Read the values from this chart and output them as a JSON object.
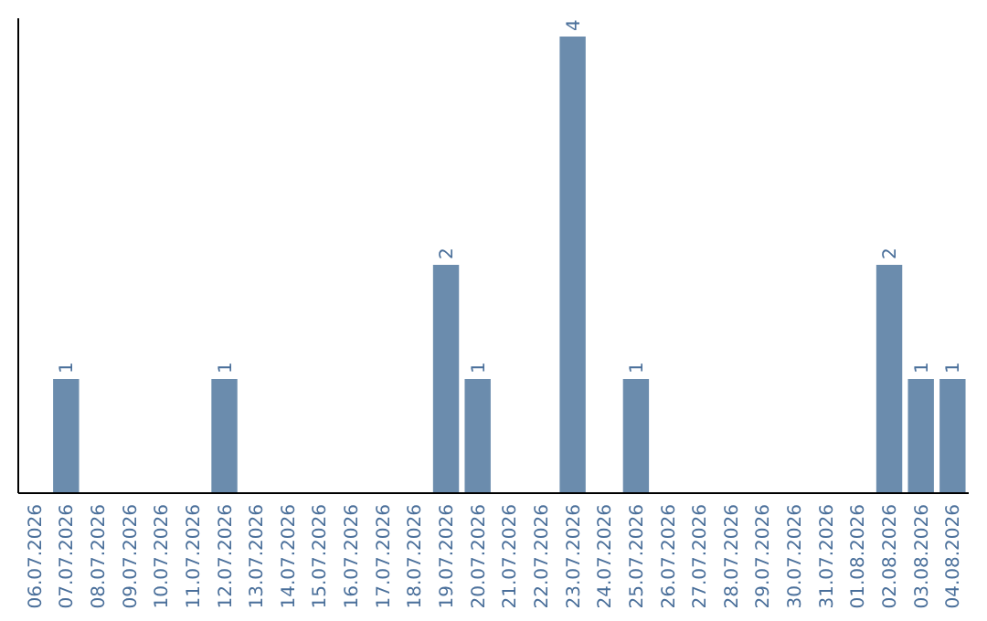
{
  "chart_data": {
    "type": "bar",
    "categories": [
      "06.07.2026",
      "07.07.2026",
      "08.07.2026",
      "09.07.2026",
      "10.07.2026",
      "11.07.2026",
      "12.07.2026",
      "13.07.2026",
      "14.07.2026",
      "15.07.2026",
      "16.07.2026",
      "17.07.2026",
      "18.07.2026",
      "19.07.2026",
      "20.07.2026",
      "21.07.2026",
      "22.07.2026",
      "23.07.2026",
      "24.07.2026",
      "25.07.2026",
      "26.07.2026",
      "27.07.2026",
      "28.07.2026",
      "29.07.2026",
      "30.07.2026",
      "31.07.2026",
      "01.08.2026",
      "02.08.2026",
      "03.08.2026",
      "04.08.2026"
    ],
    "values": [
      0,
      1,
      0,
      0,
      0,
      0,
      1,
      0,
      0,
      0,
      0,
      0,
      0,
      2,
      1,
      0,
      0,
      4,
      0,
      1,
      0,
      0,
      0,
      0,
      0,
      0,
      0,
      2,
      1,
      1
    ],
    "value_labels": [
      null,
      "1",
      null,
      null,
      null,
      null,
      "1",
      null,
      null,
      null,
      null,
      null,
      null,
      "2",
      "1",
      null,
      null,
      "4",
      null,
      "1",
      null,
      null,
      null,
      null,
      null,
      null,
      null,
      "2",
      "1",
      "1"
    ],
    "color": "#6b8cad",
    "ylim": [
      0,
      4.16
    ],
    "tick_labels": "x"
  }
}
